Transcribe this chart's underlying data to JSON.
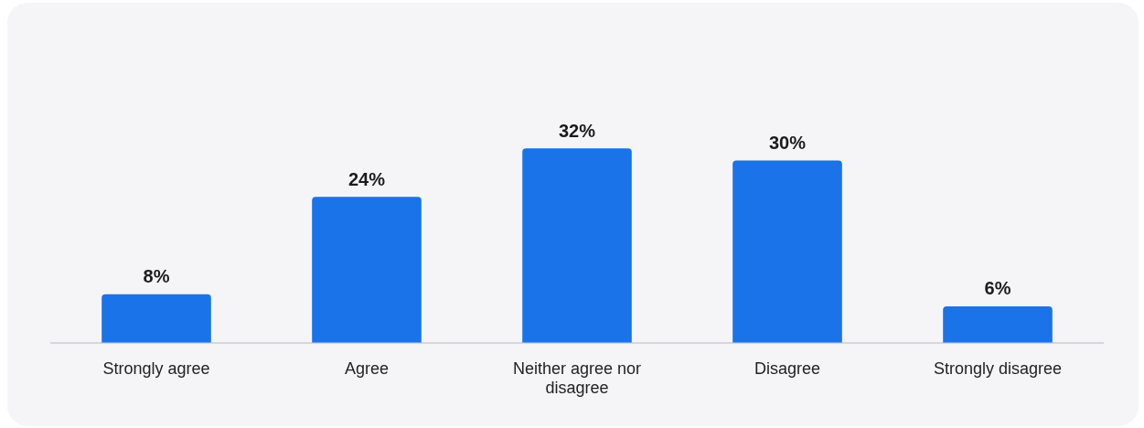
{
  "chart_data": {
    "type": "bar",
    "categories": [
      "Strongly agree",
      "Agree",
      "Neither agree nor disagree",
      "Disagree",
      "Strongly disagree"
    ],
    "values": [
      8,
      24,
      32,
      30,
      6
    ],
    "value_labels": [
      "8%",
      "24%",
      "32%",
      "30%",
      "6%"
    ],
    "color": "#1a73e8"
  }
}
